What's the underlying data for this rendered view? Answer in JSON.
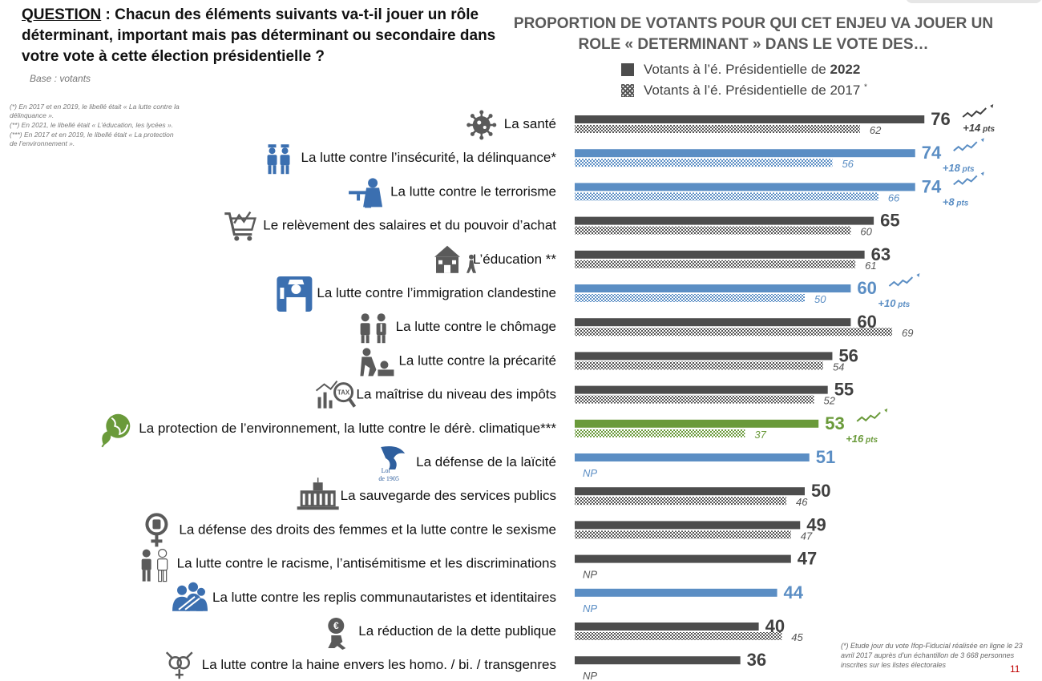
{
  "question": {
    "label": "QUESTION",
    "text": " : Chacun des éléments suivants va-t-il jouer un rôle déterminant, important mais pas déterminant ou secondaire dans votre vote à cette élection présidentielle ?"
  },
  "base": "Base : votants",
  "notes": [
    "(*) En 2017 et en 2019, le libellé était « La lutte contre la délinquance ».",
    "(**) En 2021, le libellé était « L’éducation, les lycées ».",
    "(***) En 2017 et en 2019, le libellé était « La protection de l’environnement »."
  ],
  "chart_data": {
    "type": "bar",
    "orientation": "horizontal",
    "title": "PROPORTION DE VOTANTS POUR QUI CET ENJEU VA JOUER UN ROLE « DETERMINANT » DANS LE VOTE DES…",
    "legend": {
      "series_2022_prefix": "Votants à l’é. Présidentielle de ",
      "series_2022_year": "2022",
      "series_2017": "Votants à l’é. Présidentielle de 2017",
      "series_2017_mark": "*",
      "placement": "top-right"
    },
    "colors": {
      "gray": "#4d4d4d",
      "blue": "#5b8ec4",
      "green": "#6a9a3a",
      "hatch_gray": "#555555"
    },
    "xlim": [
      0,
      100
    ],
    "pts_suffix": "pts",
    "categories": [
      {
        "label": "La santé",
        "v2022": 76,
        "v2017": 62,
        "color": "gray",
        "delta": "+14",
        "icon": "virus-icon"
      },
      {
        "label": "La lutte contre l’insécurité, la délinquance*",
        "v2022": 74,
        "v2017": 56,
        "color": "blue",
        "delta": "+18",
        "icon": "police-icon"
      },
      {
        "label": "La lutte contre le terrorisme",
        "v2022": 74,
        "v2017": 66,
        "color": "blue",
        "delta": "+8",
        "icon": "soldier-icon"
      },
      {
        "label": "Le relèvement des salaires et du pouvoir d’achat",
        "v2022": 65,
        "v2017": 60,
        "color": "gray",
        "delta": null,
        "icon": "shopping-cart-icon"
      },
      {
        "label": "L’éducation **",
        "v2022": 63,
        "v2017": 61,
        "color": "gray",
        "delta": null,
        "icon": "school-icon"
      },
      {
        "label": "La lutte contre l’immigration clandestine",
        "v2022": 60,
        "v2017": 50,
        "color": "blue",
        "delta": "+10",
        "icon": "border-officer-icon"
      },
      {
        "label": "La lutte contre le chômage",
        "v2022": 60,
        "v2017": 69,
        "color": "gray",
        "delta": null,
        "icon": "workers-icon"
      },
      {
        "label": "La lutte contre la précarité",
        "v2022": 56,
        "v2017": 54,
        "color": "gray",
        "delta": null,
        "icon": "homeless-icon"
      },
      {
        "label": "La maîtrise du niveau des impôts",
        "v2022": 55,
        "v2017": 52,
        "color": "gray",
        "delta": null,
        "icon": "tax-magnifier-icon"
      },
      {
        "label": "La protection de l’environnement, la lutte contre le dérè. climatique***",
        "v2022": 53,
        "v2017": 37,
        "color": "green",
        "delta": "+16",
        "icon": "planet-leaf-icon"
      },
      {
        "label": "La défense de la laïcité",
        "v2022": 51,
        "v2017": "NP",
        "color": "blue",
        "delta": null,
        "icon": "marianne-loi-1905-icon",
        "icon_text": [
          "Loi",
          "de 1905"
        ]
      },
      {
        "label": "La sauvegarde des services publics",
        "v2022": 50,
        "v2017": 46,
        "color": "gray",
        "delta": null,
        "icon": "public-building-icon"
      },
      {
        "label": "La défense des droits des femmes et la lutte contre le sexisme",
        "v2022": 49,
        "v2017": 47,
        "color": "gray",
        "delta": null,
        "icon": "female-fist-icon"
      },
      {
        "label": "La lutte contre le racisme, l’antisémitisme et les discriminations",
        "v2022": 47,
        "v2017": "NP",
        "color": "gray",
        "delta": null,
        "icon": "two-people-icon"
      },
      {
        "label": "La lutte contre les replis communautaristes et identitaires",
        "v2022": 44,
        "v2017": "NP",
        "color": "blue",
        "delta": null,
        "icon": "group-people-icon"
      },
      {
        "label": "La réduction de la dette publique",
        "v2022": 40,
        "v2017": 45,
        "color": "gray",
        "delta": null,
        "icon": "money-bag-icon"
      },
      {
        "label": "La lutte contre la haine envers les homo. / bi. / transgenres",
        "v2022": 36,
        "v2017": "NP",
        "color": "gray",
        "delta": null,
        "icon": "gender-symbols-icon"
      }
    ]
  },
  "footnote": "(*) Etude jour du vote Ifop-Fiducial réalisée en ligne le 23 avril 2017 auprès d’un échantillon de 3 668 personnes inscrites sur les listes électorales",
  "page_number": "11"
}
